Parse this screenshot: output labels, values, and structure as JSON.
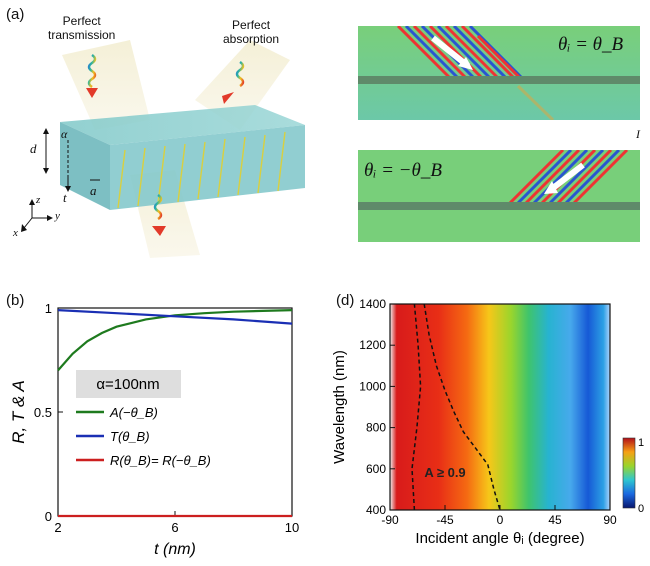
{
  "panel_a": {
    "label": "(a)",
    "beam1_text": [
      "Perfect",
      "transmission"
    ],
    "beam2_text": [
      "Perfect",
      "absorption"
    ],
    "dim_d": "d",
    "dim_alpha": "α",
    "dim_t": "t",
    "dim_a": "a",
    "axis_z": "z",
    "axis_y": "y",
    "axis_x": "x"
  },
  "panel_c": {
    "top_formula": "θᵢ = θ_B",
    "bottom_formula": "θᵢ = −θ_B",
    "side_mark": "I"
  },
  "panel_b": {
    "label": "(b)",
    "param_box": "α=100nm",
    "chart_data": {
      "type": "line",
      "xlabel": "t (nm)",
      "ylabel": "R, T & A",
      "xlim": [
        2,
        10
      ],
      "ylim": [
        0,
        1
      ],
      "x_ticks": [
        "2",
        "6",
        "10"
      ],
      "y_ticks": [
        "0",
        "0.5",
        "1"
      ],
      "series": [
        {
          "name": "A(−θ_B)",
          "color": "#1e7a1e",
          "x": [
            2,
            2.5,
            3,
            3.5,
            4,
            5,
            6,
            7,
            8,
            9,
            10
          ],
          "y": [
            0.7,
            0.78,
            0.84,
            0.88,
            0.91,
            0.945,
            0.965,
            0.975,
            0.982,
            0.986,
            0.99
          ]
        },
        {
          "name": "T(θ_B)",
          "color": "#1a2fb4",
          "x": [
            2,
            4,
            6,
            8,
            10
          ],
          "y": [
            0.99,
            0.975,
            0.96,
            0.945,
            0.925
          ]
        },
        {
          "name": "R(θ_B)= R(−θ_B)",
          "color": "#cc1f1f",
          "x": [
            2,
            10
          ],
          "y": [
            0.0,
            0.0
          ]
        }
      ]
    }
  },
  "panel_d": {
    "label": "(d)",
    "contour_label": "A ≥ 0.9",
    "colorbar_ticks": [
      "1",
      "0"
    ],
    "chart_data": {
      "type": "heatmap",
      "xlabel": "Incident angle θᵢ (degree)",
      "ylabel": "Wavelength (nm)",
      "xlim": [
        -90,
        90
      ],
      "ylim": [
        400,
        1400
      ],
      "x_ticks": [
        "-90",
        "-45",
        "0",
        "45",
        "90"
      ],
      "y_ticks": [
        "400",
        "600",
        "800",
        "1000",
        "1200",
        "1400"
      ],
      "colorbar_range": [
        0,
        1
      ],
      "contour_A_0_9": {
        "x": [
          -70,
          -72,
          -68,
          -64,
          -58,
          -52,
          -45,
          -35,
          -20,
          -8,
          -2,
          0
        ],
        "y": [
          400,
          600,
          800,
          1000,
          1100,
          1200,
          1300,
          1400,
          800,
          650,
          500,
          400
        ]
      }
    }
  }
}
